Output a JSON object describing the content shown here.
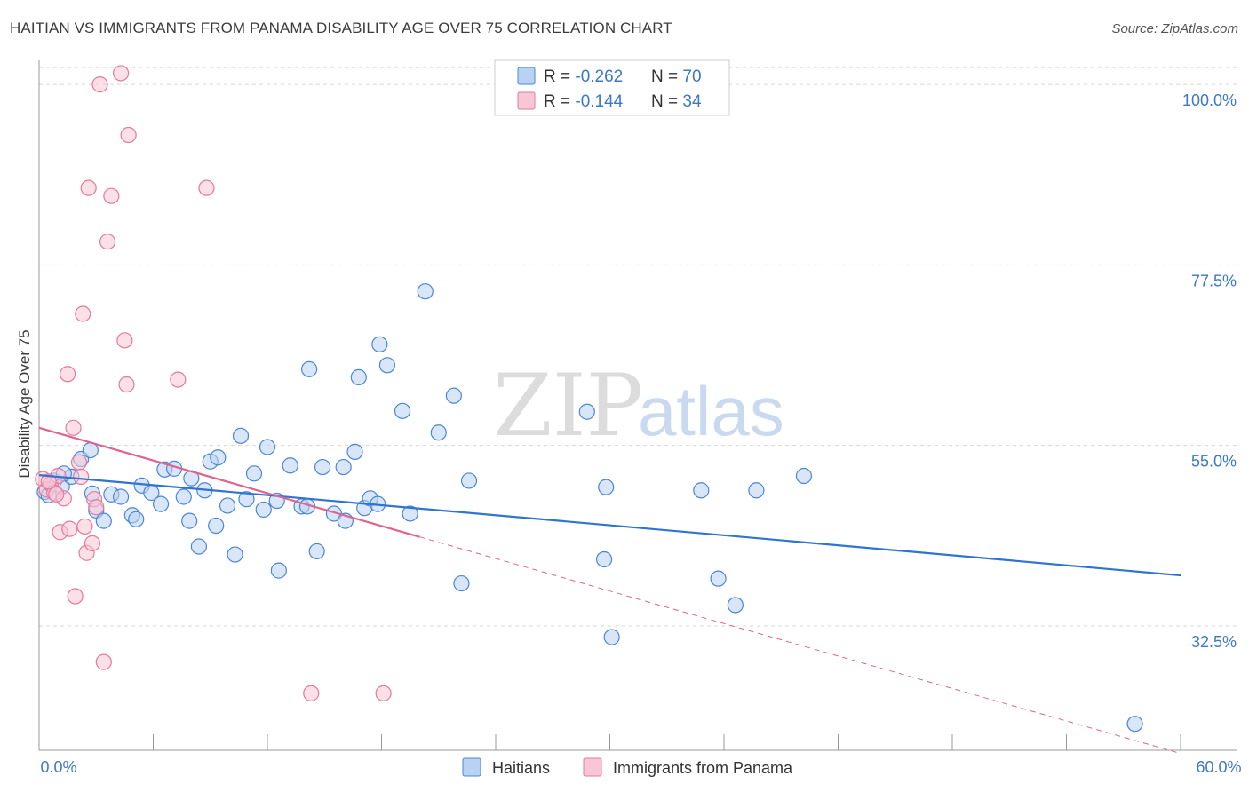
{
  "title": "HAITIAN VS IMMIGRANTS FROM PANAMA DISABILITY AGE OVER 75 CORRELATION CHART",
  "source": "Source: ZipAtlas.com",
  "watermark": {
    "zip": "ZIP",
    "atlas": "atlas"
  },
  "colors": {
    "blue": "#4a86d8",
    "blue_fill": "#b9d1f2",
    "blue_line": "#2f74d0",
    "pink": "#e5799c",
    "pink_fill": "#f8c6d5",
    "pink_line": "#e0628e",
    "axis_text": "#3c78c8",
    "grid": "#d8d8d8"
  },
  "stats_box": {
    "rows": [
      {
        "r_label": "R = ",
        "r_value": "-0.262",
        "n_label": "N = ",
        "n_value": "70"
      },
      {
        "r_label": "R = ",
        "r_value": "-0.144",
        "n_label": "N = ",
        "n_value": "34"
      }
    ]
  },
  "chart_data": {
    "type": "scatter",
    "title": "HAITIAN VS IMMIGRANTS FROM PANAMA DISABILITY AGE OVER 75 CORRELATION CHART",
    "xlabel": "",
    "ylabel": "Disability Age Over 75",
    "xlim": [
      0,
      60
    ],
    "ylim": [
      17,
      103
    ],
    "x_tick_labels": [
      "0.0%",
      "60.0%"
    ],
    "y_ticks": [
      32.5,
      55.0,
      77.5,
      100.0
    ],
    "y_tick_labels": [
      "32.5%",
      "55.0%",
      "77.5%",
      "100.0%"
    ],
    "grid": true,
    "legend": "bottom-center",
    "series": [
      {
        "name": "Haitians",
        "color": "#4a86d8",
        "points": [
          [
            0.3,
            49.2
          ],
          [
            0.8,
            50.6
          ],
          [
            1.2,
            49.9
          ],
          [
            1.7,
            51.1
          ],
          [
            2.2,
            53.3
          ],
          [
            2.8,
            49.0
          ],
          [
            3.0,
            46.9
          ],
          [
            3.4,
            45.6
          ],
          [
            3.8,
            48.9
          ],
          [
            4.3,
            48.6
          ],
          [
            4.9,
            46.3
          ],
          [
            5.1,
            45.8
          ],
          [
            5.4,
            50.0
          ],
          [
            5.9,
            49.1
          ],
          [
            6.4,
            47.7
          ],
          [
            6.6,
            52.0
          ],
          [
            7.1,
            52.1
          ],
          [
            7.6,
            48.6
          ],
          [
            7.9,
            45.6
          ],
          [
            8.0,
            50.9
          ],
          [
            8.4,
            42.4
          ],
          [
            8.7,
            49.4
          ],
          [
            9.0,
            53.0
          ],
          [
            9.4,
            53.5
          ],
          [
            9.3,
            45.0
          ],
          [
            9.9,
            47.5
          ],
          [
            10.3,
            41.4
          ],
          [
            10.6,
            56.2
          ],
          [
            10.9,
            48.3
          ],
          [
            11.3,
            51.5
          ],
          [
            11.8,
            47.0
          ],
          [
            12.0,
            54.8
          ],
          [
            12.5,
            48.1
          ],
          [
            12.6,
            39.4
          ],
          [
            13.2,
            52.5
          ],
          [
            13.8,
            47.4
          ],
          [
            14.1,
            47.4
          ],
          [
            14.6,
            41.8
          ],
          [
            14.2,
            64.5
          ],
          [
            14.9,
            52.3
          ],
          [
            15.5,
            46.5
          ],
          [
            16.0,
            52.3
          ],
          [
            16.1,
            45.6
          ],
          [
            16.6,
            54.2
          ],
          [
            16.8,
            63.5
          ],
          [
            17.1,
            47.2
          ],
          [
            17.4,
            48.4
          ],
          [
            17.8,
            47.7
          ],
          [
            17.9,
            67.6
          ],
          [
            18.3,
            65.0
          ],
          [
            19.1,
            59.3
          ],
          [
            19.5,
            46.5
          ],
          [
            20.3,
            74.2
          ],
          [
            21.0,
            56.6
          ],
          [
            21.8,
            61.2
          ],
          [
            22.2,
            37.8
          ],
          [
            22.6,
            50.6
          ],
          [
            28.8,
            59.2
          ],
          [
            29.7,
            40.8
          ],
          [
            29.8,
            49.8
          ],
          [
            30.1,
            31.1
          ],
          [
            34.8,
            49.4
          ],
          [
            35.7,
            38.4
          ],
          [
            36.6,
            35.1
          ],
          [
            37.7,
            49.4
          ],
          [
            40.2,
            51.2
          ],
          [
            57.6,
            20.3
          ],
          [
            0.5,
            48.8
          ],
          [
            1.3,
            51.5
          ],
          [
            2.7,
            54.4
          ]
        ],
        "trend": {
          "x": [
            0,
            60
          ],
          "y": [
            51.3,
            38.8
          ]
        }
      },
      {
        "name": "Immigrants from Panama",
        "color": "#e5799c",
        "points": [
          [
            0.2,
            50.8
          ],
          [
            0.4,
            49.5
          ],
          [
            0.6,
            50.2
          ],
          [
            0.8,
            49.1
          ],
          [
            1.0,
            51.2
          ],
          [
            1.1,
            44.2
          ],
          [
            1.3,
            48.4
          ],
          [
            1.5,
            63.9
          ],
          [
            1.6,
            44.6
          ],
          [
            1.8,
            57.2
          ],
          [
            1.9,
            36.2
          ],
          [
            2.1,
            52.9
          ],
          [
            2.2,
            51.1
          ],
          [
            2.3,
            71.4
          ],
          [
            2.4,
            44.9
          ],
          [
            2.5,
            41.6
          ],
          [
            2.6,
            87.1
          ],
          [
            2.8,
            42.8
          ],
          [
            2.9,
            48.3
          ],
          [
            3.0,
            47.3
          ],
          [
            3.2,
            100.0
          ],
          [
            3.4,
            28.0
          ],
          [
            3.8,
            86.1
          ],
          [
            3.6,
            80.4
          ],
          [
            4.3,
            101.4
          ],
          [
            4.5,
            68.1
          ],
          [
            4.6,
            62.6
          ],
          [
            4.7,
            93.7
          ],
          [
            7.3,
            63.2
          ],
          [
            8.8,
            87.1
          ],
          [
            14.3,
            24.1
          ],
          [
            18.1,
            24.1
          ],
          [
            0.9,
            48.9
          ],
          [
            0.5,
            50.5
          ]
        ],
        "trend": {
          "x": [
            0,
            20
          ],
          "y": [
            57.2,
            43.6
          ]
        },
        "trend_extension": {
          "x": [
            20,
            60
          ],
          "y": [
            43.6,
            16.6
          ]
        }
      }
    ]
  }
}
